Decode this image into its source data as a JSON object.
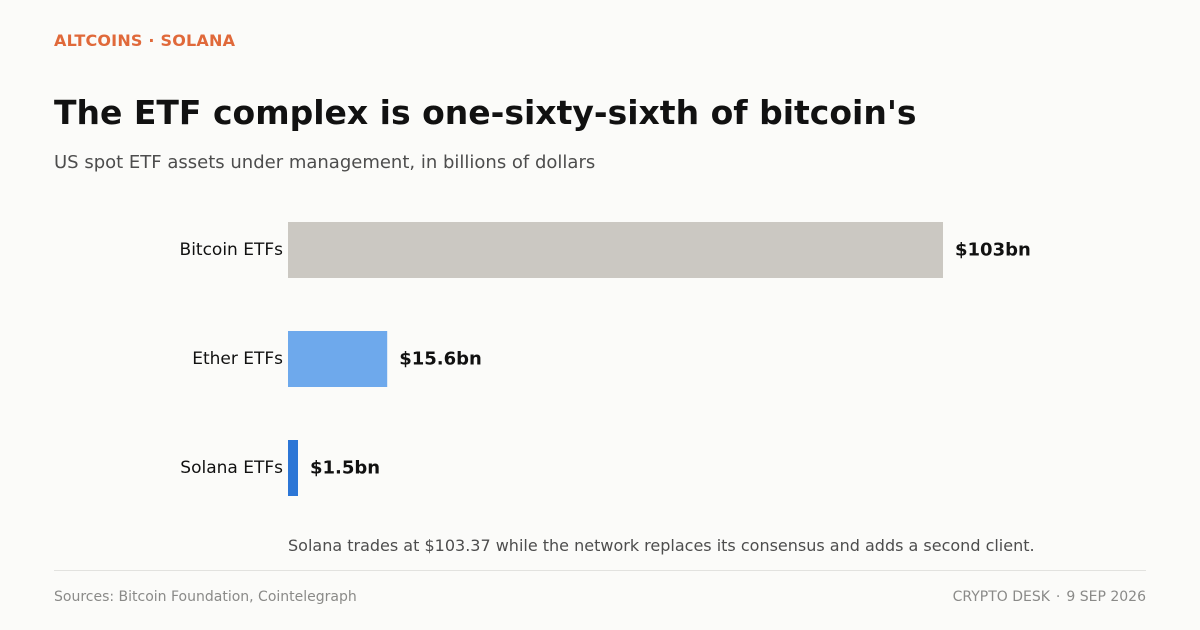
{
  "header": {
    "kicker": "ALTCOINS · SOLANA",
    "title": "The ETF complex is one-sixty-sixth of bitcoin's",
    "subtitle": "US spot ETF assets under management, in billions of dollars"
  },
  "chart_data": {
    "type": "bar",
    "orientation": "horizontal",
    "categories": [
      "Bitcoin ETFs",
      "Ether ETFs",
      "Solana ETFs"
    ],
    "values": [
      103,
      15.6,
      1.5
    ],
    "value_labels": [
      "$103bn",
      "$15.6bn",
      "$1.5bn"
    ],
    "colors": [
      "#cbc8c2",
      "#6ea9ec",
      "#2c76d6"
    ],
    "grid": false,
    "legend": "none"
  },
  "note": "Solana trades at $103.37 while the network replaces its consensus and adds a second client.",
  "footer": {
    "source": "Sources: Bitcoin Foundation, Cointelegraph",
    "desk": "CRYPTO DESK",
    "separator": "·",
    "date": "9 SEP 2026"
  },
  "theme": {
    "accent": "#e0693a",
    "background": "#fbfbf9"
  }
}
